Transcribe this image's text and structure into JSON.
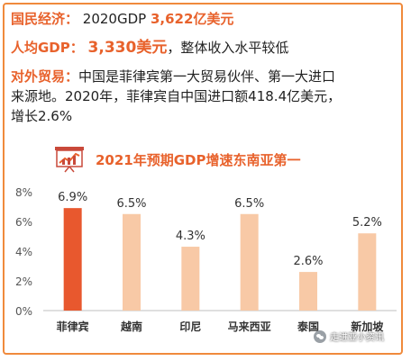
{
  "facts": {
    "gdp_label": "国民经济：",
    "gdp_text": "2020GDP",
    "gdp_value": "3,622亿美元",
    "per_capita_label": "人均GDP：",
    "per_capita_value": "3,330美元",
    "per_capita_note": "，整体收入水平较低",
    "trade_label": "对外贸易：",
    "trade_text_1": "中国是菲律宾第一大贸易伙伴、第一大进口",
    "trade_text_2": "来源地。2020年，菲律宾自中国进口额418.4亿美元，",
    "trade_text_3": "增长2.6%"
  },
  "icon": "presentation-chart-icon",
  "colors": {
    "accent": "#e8622c",
    "highlight_bar": "#e8582e",
    "bar": "#f8c9a6",
    "frame": "#f08a3c"
  },
  "chart_data": {
    "type": "bar",
    "title": "2021年预期GDP增速东南亚第一",
    "categories": [
      "菲律宾",
      "越南",
      "印尼",
      "马来西亚",
      "泰国",
      "新加坡"
    ],
    "values": [
      6.9,
      6.5,
      4.3,
      6.5,
      2.6,
      5.2
    ],
    "data_labels": [
      "6.9%",
      "6.5%",
      "4.3%",
      "6.5%",
      "2.6%",
      "5.2%"
    ],
    "ylim": [
      0,
      8
    ],
    "yticks": [
      0,
      2,
      4,
      6,
      8
    ],
    "ytick_labels": [
      "0%",
      "2%",
      "4%",
      "6%",
      "8%"
    ],
    "highlight_index": 0,
    "grid": false
  },
  "watermark": "走进亚小资讯"
}
